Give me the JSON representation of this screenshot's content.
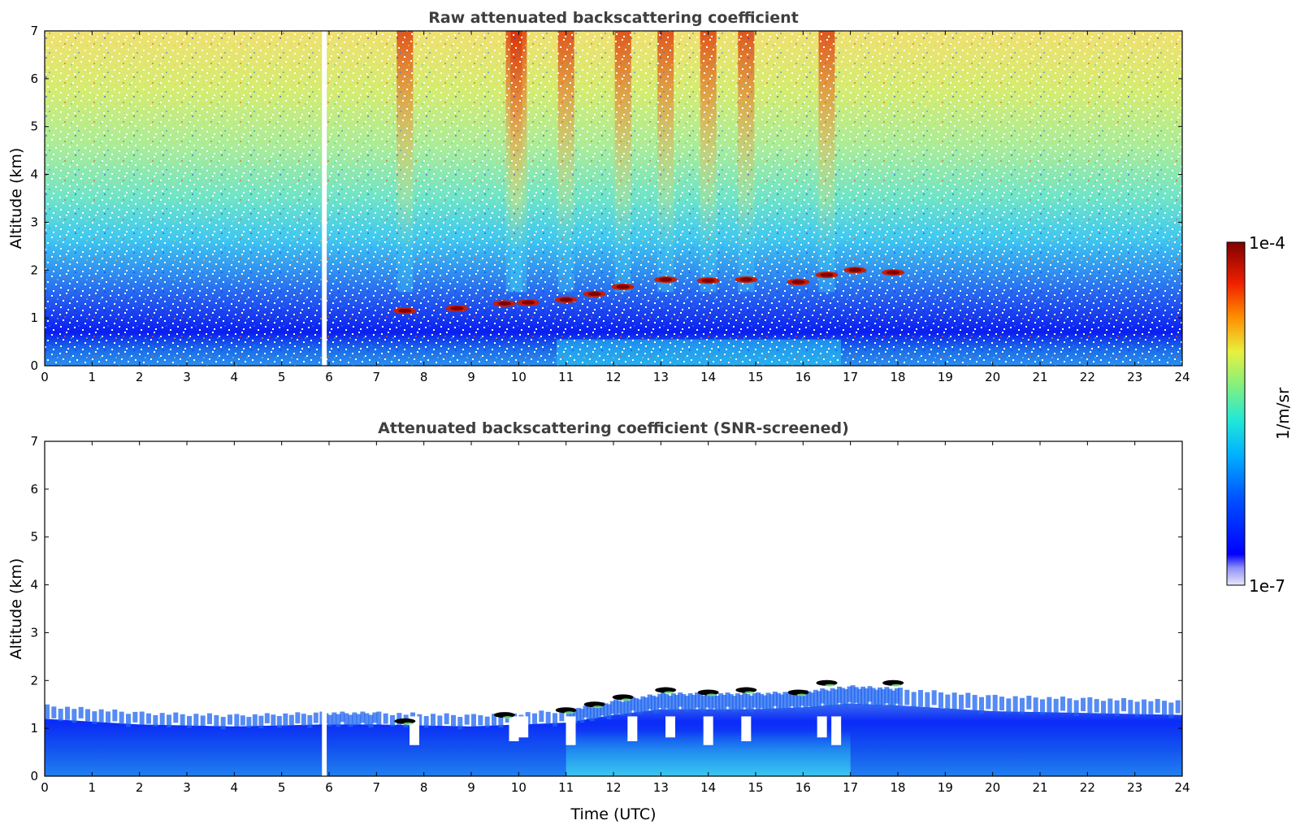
{
  "chart_data": [
    {
      "type": "heatmap",
      "title": "Raw attenuated backscattering coefficient",
      "xlabel": "",
      "ylabel": "Altitude (km)",
      "xlim": [
        0,
        24
      ],
      "ylim": [
        0,
        7
      ],
      "x_ticks": [
        "0",
        "1",
        "2",
        "3",
        "4",
        "5",
        "6",
        "7",
        "8",
        "9",
        "10",
        "11",
        "12",
        "13",
        "14",
        "15",
        "16",
        "17",
        "18",
        "19",
        "20",
        "21",
        "22",
        "23",
        "24"
      ],
      "y_ticks": [
        "0",
        "1",
        "2",
        "3",
        "4",
        "5",
        "6",
        "7"
      ],
      "data_gap_utc": [
        5.85,
        5.95
      ],
      "high_signal_columns_utc": [
        7.6,
        9.9,
        10.0,
        11.0,
        12.2,
        13.1,
        14.0,
        14.8,
        16.5
      ],
      "cloud_layer": [
        {
          "x": 7.6,
          "y": 1.15
        },
        {
          "x": 8.7,
          "y": 1.2
        },
        {
          "x": 9.7,
          "y": 1.3
        },
        {
          "x": 10.2,
          "y": 1.32
        },
        {
          "x": 11.0,
          "y": 1.38
        },
        {
          "x": 11.6,
          "y": 1.5
        },
        {
          "x": 12.2,
          "y": 1.65
        },
        {
          "x": 13.1,
          "y": 1.8
        },
        {
          "x": 14.0,
          "y": 1.78
        },
        {
          "x": 14.8,
          "y": 1.8
        },
        {
          "x": 15.9,
          "y": 1.75
        },
        {
          "x": 16.5,
          "y": 1.9
        },
        {
          "x": 17.1,
          "y": 2.0
        },
        {
          "x": 17.9,
          "y": 1.95
        }
      ]
    },
    {
      "type": "heatmap",
      "title": "Attenuated backscattering coefficient (SNR-screened)",
      "xlabel": "Time (UTC)",
      "ylabel": "Altitude (km)",
      "xlim": [
        0,
        24
      ],
      "ylim": [
        0,
        7
      ],
      "x_ticks": [
        "0",
        "1",
        "2",
        "3",
        "4",
        "5",
        "6",
        "7",
        "8",
        "9",
        "10",
        "11",
        "12",
        "13",
        "14",
        "15",
        "16",
        "17",
        "18",
        "19",
        "20",
        "21",
        "22",
        "23",
        "24"
      ],
      "y_ticks": [
        "0",
        "1",
        "2",
        "3",
        "4",
        "5",
        "6",
        "7"
      ],
      "data_gap_utc": [
        5.85,
        5.95
      ],
      "boundary_layer_top_km": [
        {
          "x": 0,
          "y": 1.5
        },
        {
          "x": 2,
          "y": 1.35
        },
        {
          "x": 4,
          "y": 1.3
        },
        {
          "x": 5.8,
          "y": 1.35
        },
        {
          "x": 7,
          "y": 1.35
        },
        {
          "x": 9,
          "y": 1.3
        },
        {
          "x": 11,
          "y": 1.4
        },
        {
          "x": 12,
          "y": 1.6
        },
        {
          "x": 13,
          "y": 1.75
        },
        {
          "x": 14,
          "y": 1.75
        },
        {
          "x": 15,
          "y": 1.75
        },
        {
          "x": 16,
          "y": 1.8
        },
        {
          "x": 17,
          "y": 1.9
        },
        {
          "x": 18,
          "y": 1.85
        },
        {
          "x": 20,
          "y": 1.7
        },
        {
          "x": 22,
          "y": 1.65
        },
        {
          "x": 24,
          "y": 1.6
        }
      ],
      "cloud_layer": [
        {
          "x": 7.6,
          "y": 1.15
        },
        {
          "x": 9.7,
          "y": 1.28
        },
        {
          "x": 11.0,
          "y": 1.38
        },
        {
          "x": 11.6,
          "y": 1.5
        },
        {
          "x": 12.2,
          "y": 1.65
        },
        {
          "x": 13.1,
          "y": 1.8
        },
        {
          "x": 14.0,
          "y": 1.75
        },
        {
          "x": 14.8,
          "y": 1.8
        },
        {
          "x": 15.9,
          "y": 1.75
        },
        {
          "x": 16.5,
          "y": 1.95
        },
        {
          "x": 17.9,
          "y": 1.95
        }
      ]
    }
  ],
  "colorbar": {
    "label": "1/m/sr",
    "max_label": "1e-4",
    "min_label": "1e-7",
    "scale": "log",
    "colormap": "jet"
  },
  "colors": {
    "deep_blue": "#0000ff",
    "blue": "#1e64f0",
    "light_blue": "#29c8f0",
    "green": "#7ef08a",
    "yellow": "#e8e84a",
    "red": "#c81e00",
    "dark_red": "#800000",
    "cloud_screened": "#000000"
  }
}
